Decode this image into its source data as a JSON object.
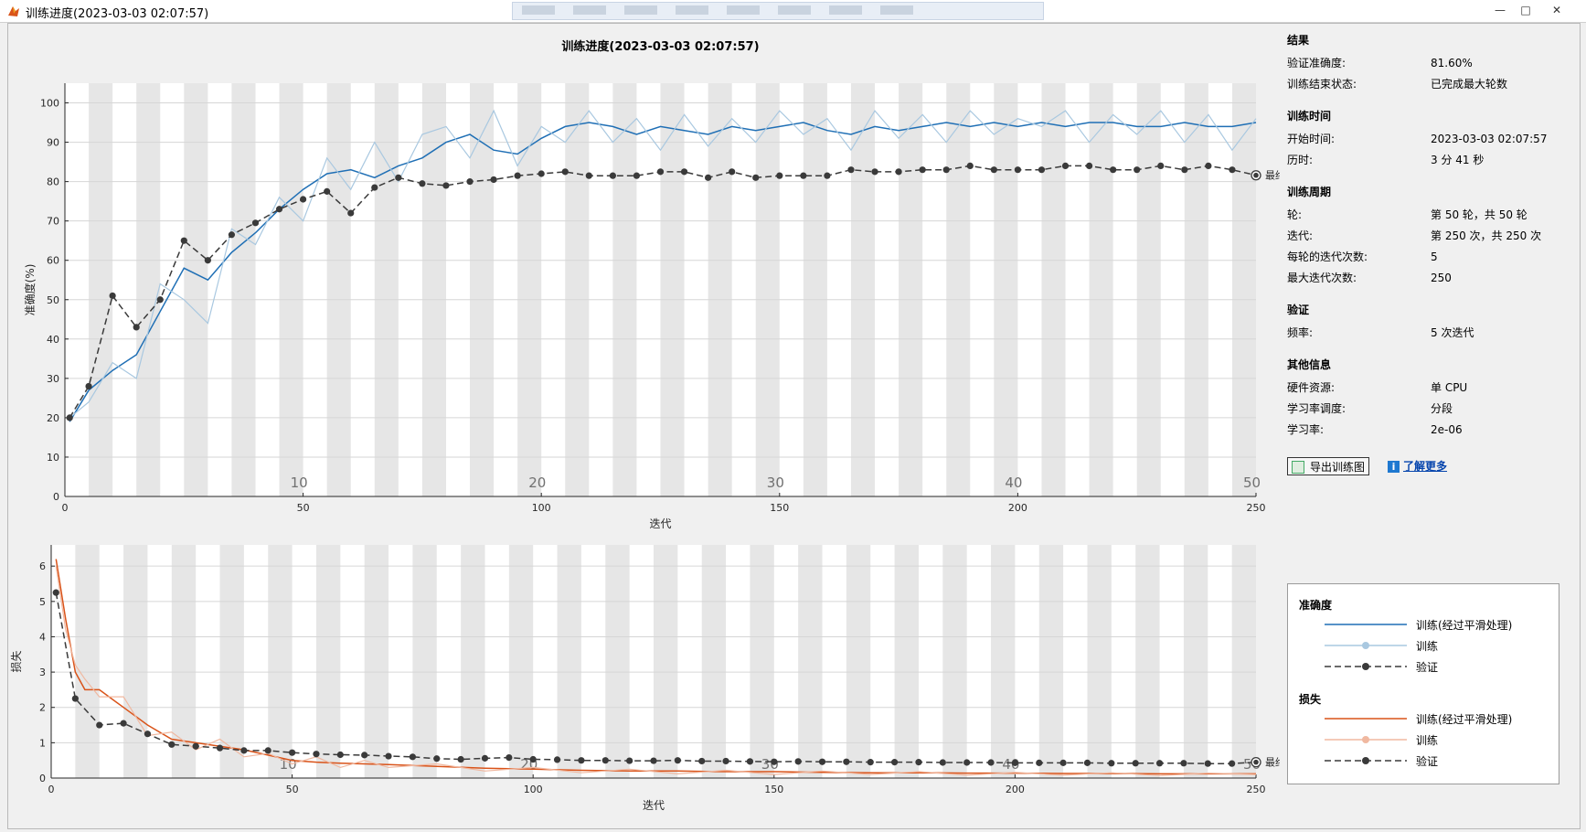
{
  "window": {
    "title": "训练进度(2023-03-03 02:07:57)",
    "controls": [
      "—",
      "□",
      "✕"
    ]
  },
  "figure": {
    "title": "训练进度(2023-03-03 02:07:57)"
  },
  "colors": {
    "acc_smooth": "#1f6fb5",
    "acc_raw": "#a9c8e0",
    "loss_smooth": "#d95319",
    "loss_raw": "#f0b8a0",
    "validation": "#3a3a3a",
    "band": "#e6e6e6"
  },
  "sidebar": {
    "results": {
      "heading": "结果",
      "rows": [
        {
          "label": "验证准确度:",
          "value": "81.60%"
        },
        {
          "label": "训练结束状态:",
          "value": "已完成最大轮数"
        }
      ]
    },
    "time": {
      "heading": "训练时间",
      "rows": [
        {
          "label": "开始时间:",
          "value": "2023-03-03 02:07:57"
        },
        {
          "label": "历时:",
          "value": "3 分 41 秒"
        }
      ]
    },
    "cycle": {
      "heading": "训练周期",
      "rows": [
        {
          "label": "轮:",
          "value": "第 50 轮，共 50 轮"
        },
        {
          "label": "迭代:",
          "value": "第 250 次，共 250 次"
        },
        {
          "label": "每轮的迭代次数:",
          "value": "5"
        },
        {
          "label": "最大迭代次数:",
          "value": "250"
        }
      ]
    },
    "validation": {
      "heading": "验证",
      "rows": [
        {
          "label": "频率:",
          "value": "5 次迭代"
        }
      ]
    },
    "other": {
      "heading": "其他信息",
      "rows": [
        {
          "label": "硬件资源:",
          "value": "单 CPU"
        },
        {
          "label": "学习率调度:",
          "value": "分段"
        },
        {
          "label": "学习率:",
          "value": "2e-06"
        }
      ]
    },
    "export_label": "导出训练图",
    "learn_label": "了解更多",
    "learn_icon": "i"
  },
  "legend": {
    "accuracy_heading": "准确度",
    "loss_heading": "损失",
    "smooth_label": "训练(经过平滑处理)",
    "raw_label": "训练",
    "val_label": "验证"
  },
  "chart_data": [
    {
      "type": "line",
      "title": "训练进度(2023-03-03 02:07:57)",
      "xlabel": "迭代",
      "ylabel": "准确度(%)",
      "xlim": [
        0,
        250
      ],
      "ylim": [
        0,
        105
      ],
      "xticks": [
        0,
        50,
        100,
        150,
        200,
        250
      ],
      "yticks": [
        0,
        10,
        20,
        30,
        40,
        50,
        60,
        70,
        80,
        90,
        100
      ],
      "epoch_labels": [
        10,
        20,
        30,
        40,
        50
      ],
      "epoch_length": 5,
      "grid": true,
      "final_marker_label": "最终",
      "series": [
        {
          "name": "训练(经过平滑处理)",
          "kind": "smooth",
          "x": [
            1,
            5,
            10,
            15,
            20,
            25,
            30,
            35,
            40,
            45,
            50,
            55,
            60,
            65,
            70,
            75,
            80,
            85,
            90,
            95,
            100,
            105,
            110,
            115,
            120,
            125,
            130,
            135,
            140,
            145,
            150,
            155,
            160,
            165,
            170,
            175,
            180,
            185,
            190,
            195,
            200,
            205,
            210,
            215,
            220,
            225,
            230,
            235,
            240,
            245,
            250
          ],
          "y": [
            19,
            27,
            32,
            36,
            47,
            58,
            55,
            62,
            67,
            73,
            78,
            82,
            83,
            81,
            84,
            86,
            90,
            92,
            88,
            87,
            91,
            94,
            95,
            94,
            92,
            94,
            93,
            92,
            94,
            93,
            94,
            95,
            93,
            92,
            94,
            93,
            94,
            95,
            94,
            95,
            94,
            95,
            94,
            95,
            95,
            94,
            94,
            95,
            94,
            94,
            95
          ]
        },
        {
          "name": "训练",
          "kind": "raw",
          "x": [
            1,
            5,
            10,
            15,
            20,
            25,
            30,
            35,
            40,
            45,
            50,
            55,
            60,
            65,
            70,
            75,
            80,
            85,
            90,
            95,
            100,
            105,
            110,
            115,
            120,
            125,
            130,
            135,
            140,
            145,
            150,
            155,
            160,
            165,
            170,
            175,
            180,
            185,
            190,
            195,
            200,
            205,
            210,
            215,
            220,
            225,
            230,
            235,
            240,
            245,
            250
          ],
          "y": [
            20,
            24,
            34,
            30,
            54,
            50,
            44,
            68,
            64,
            76,
            70,
            86,
            78,
            90,
            80,
            92,
            94,
            86,
            98,
            84,
            94,
            90,
            98,
            90,
            96,
            88,
            97,
            89,
            96,
            90,
            98,
            92,
            96,
            88,
            98,
            91,
            97,
            90,
            98,
            92,
            96,
            94,
            98,
            90,
            97,
            92,
            98,
            90,
            97,
            88,
            96
          ]
        },
        {
          "name": "验证",
          "kind": "validation",
          "x": [
            1,
            5,
            10,
            15,
            20,
            25,
            30,
            35,
            40,
            45,
            50,
            55,
            60,
            65,
            70,
            75,
            80,
            85,
            90,
            95,
            100,
            105,
            110,
            115,
            120,
            125,
            130,
            135,
            140,
            145,
            150,
            155,
            160,
            165,
            170,
            175,
            180,
            185,
            190,
            195,
            200,
            205,
            210,
            215,
            220,
            225,
            230,
            235,
            240,
            245,
            250
          ],
          "y": [
            20,
            28,
            51,
            43,
            50,
            65,
            60,
            66.5,
            69.5,
            73,
            75.5,
            77.5,
            72,
            78.5,
            81,
            79.5,
            79,
            80,
            80.5,
            81.5,
            82,
            82.5,
            81.5,
            81.5,
            81.5,
            82.5,
            82.5,
            81,
            82.5,
            81,
            81.5,
            81.5,
            81.5,
            83,
            82.5,
            82.5,
            83,
            83,
            84,
            83,
            83,
            83,
            84,
            84,
            83,
            83,
            84,
            83,
            84,
            83,
            81.6
          ]
        }
      ]
    },
    {
      "type": "line",
      "xlabel": "迭代",
      "ylabel": "损失",
      "xlim": [
        0,
        250
      ],
      "ylim": [
        0,
        6.6
      ],
      "xticks": [
        0,
        50,
        100,
        150,
        200,
        250
      ],
      "yticks": [
        0,
        1,
        2,
        3,
        4,
        5,
        6
      ],
      "epoch_labels": [
        10,
        20,
        30,
        40,
        50
      ],
      "epoch_length": 5,
      "grid": true,
      "final_marker_label": "最终",
      "series": [
        {
          "name": "训练(经过平滑处理)",
          "kind": "smooth",
          "x": [
            1,
            3,
            5,
            7,
            10,
            15,
            20,
            25,
            30,
            35,
            40,
            45,
            50,
            55,
            60,
            65,
            70,
            80,
            90,
            100,
            110,
            120,
            130,
            140,
            150,
            160,
            170,
            180,
            190,
            200,
            210,
            220,
            230,
            240,
            250
          ],
          "y": [
            6.2,
            4.5,
            3.0,
            2.5,
            2.5,
            2.0,
            1.5,
            1.1,
            1.0,
            0.9,
            0.8,
            0.65,
            0.5,
            0.45,
            0.42,
            0.4,
            0.38,
            0.33,
            0.28,
            0.25,
            0.22,
            0.2,
            0.2,
            0.18,
            0.18,
            0.16,
            0.15,
            0.15,
            0.14,
            0.14,
            0.13,
            0.13,
            0.12,
            0.12,
            0.12
          ]
        },
        {
          "name": "训练",
          "kind": "raw",
          "x": [
            1,
            3,
            5,
            7,
            10,
            15,
            20,
            25,
            30,
            35,
            40,
            45,
            50,
            55,
            60,
            65,
            70,
            80,
            90,
            100,
            110,
            120,
            130,
            140,
            150,
            160,
            170,
            180,
            190,
            200,
            210,
            220,
            230,
            240,
            250
          ],
          "y": [
            6.0,
            4.2,
            3.2,
            2.8,
            2.3,
            2.3,
            1.2,
            1.3,
            0.8,
            1.1,
            0.6,
            0.7,
            0.4,
            0.6,
            0.3,
            0.5,
            0.3,
            0.4,
            0.2,
            0.3,
            0.15,
            0.25,
            0.12,
            0.22,
            0.1,
            0.2,
            0.1,
            0.18,
            0.08,
            0.16,
            0.08,
            0.15,
            0.07,
            0.14,
            0.1
          ]
        },
        {
          "name": "验证",
          "kind": "validation",
          "x": [
            1,
            5,
            10,
            15,
            20,
            25,
            30,
            35,
            40,
            45,
            50,
            55,
            60,
            65,
            70,
            75,
            80,
            85,
            90,
            95,
            100,
            105,
            110,
            115,
            120,
            125,
            130,
            135,
            140,
            145,
            150,
            155,
            160,
            165,
            170,
            175,
            180,
            185,
            190,
            195,
            200,
            205,
            210,
            215,
            220,
            225,
            230,
            235,
            240,
            245,
            250
          ],
          "y": [
            5.25,
            2.25,
            1.5,
            1.55,
            1.25,
            0.95,
            0.9,
            0.85,
            0.78,
            0.78,
            0.72,
            0.68,
            0.66,
            0.65,
            0.62,
            0.6,
            0.55,
            0.53,
            0.56,
            0.58,
            0.53,
            0.52,
            0.5,
            0.5,
            0.49,
            0.49,
            0.5,
            0.48,
            0.48,
            0.47,
            0.46,
            0.47,
            0.46,
            0.46,
            0.45,
            0.45,
            0.45,
            0.44,
            0.44,
            0.44,
            0.43,
            0.43,
            0.43,
            0.43,
            0.42,
            0.42,
            0.42,
            0.42,
            0.41,
            0.41,
            0.45
          ]
        }
      ]
    }
  ]
}
